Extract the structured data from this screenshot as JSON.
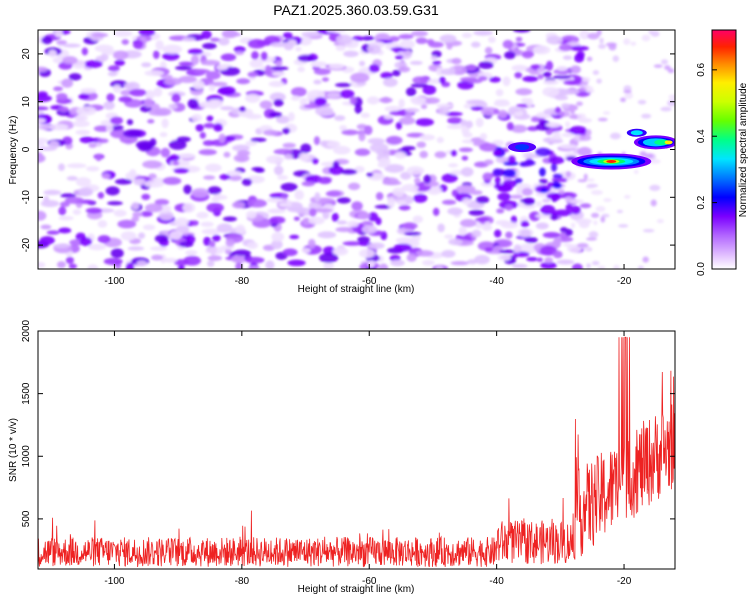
{
  "figure_title": "PAZ1.2025.360.03.59.G31",
  "chart_data": [
    {
      "type": "heatmap",
      "title": "PAZ1.2025.360.03.59.G31",
      "xlabel": "Height of straight line (km)",
      "ylabel": "Frequency (Hz)",
      "xlim": [
        -112,
        -12
      ],
      "ylim": [
        -25,
        25
      ],
      "xticks": [
        -100,
        -80,
        -60,
        -40,
        -20
      ],
      "yticks": [
        -20,
        -10,
        0,
        10,
        20
      ],
      "colorbar": {
        "label": "Normalized spectral amplitude",
        "range": [
          0,
          0.72
        ],
        "ticks": [
          0.0,
          0.2,
          0.4,
          0.6
        ],
        "tick_labels": [
          "0.0",
          "0.2",
          "0.4",
          "0.6"
        ],
        "colors": [
          "#ffffff",
          "#e6c8ff",
          "#b266ff",
          "#7b00ff",
          "#3300ff",
          "#0000ff",
          "#0077ff",
          "#00e5ff",
          "#00ff88",
          "#66ff00",
          "#ccff00",
          "#ffee00",
          "#ff8800",
          "#ff2200",
          "#ff0066"
        ]
      },
      "features": [
        {
          "name": "noise background",
          "x_range": [
            -112,
            -28
          ],
          "y_range": [
            -25,
            25
          ],
          "amplitude": 0.15
        },
        {
          "name": "main signal",
          "x_range": [
            -30,
            -12
          ],
          "y_center_start": -3,
          "y_center_end": 2,
          "peak_amplitude": 0.7,
          "peak_x": -22,
          "peak_y": -3
        }
      ]
    },
    {
      "type": "line",
      "title": "",
      "xlabel": "Height of straight line (km)",
      "ylabel": "SNR (10 * v/v)",
      "xlim": [
        -112,
        -12
      ],
      "ylim": [
        100,
        2000
      ],
      "xticks": [
        -100,
        -80,
        -60,
        -40,
        -20
      ],
      "yticks": [
        500,
        1000,
        1500,
        2000
      ],
      "color": "#ee2222",
      "series": [
        {
          "name": "SNR",
          "segments": [
            {
              "x": [
                -112,
                -40
              ],
              "baseline": 200,
              "noise": 150
            },
            {
              "x": [
                -40,
                -28
              ],
              "baseline": 260,
              "noise": 220
            },
            {
              "x": [
                -28,
                -12
              ],
              "baseline_start": 400,
              "baseline_end": 1000,
              "noise": 450,
              "max": 2000
            }
          ]
        }
      ]
    }
  ]
}
